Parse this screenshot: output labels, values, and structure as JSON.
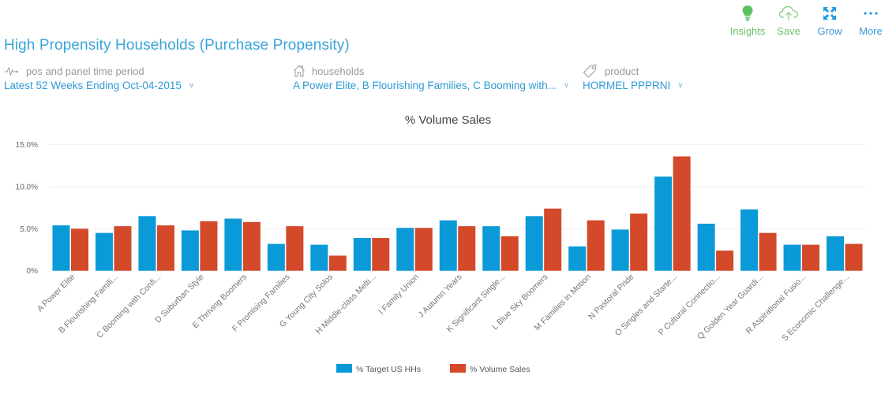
{
  "toolbar": {
    "items": [
      {
        "label": "Insights",
        "icon": "lightbulb-icon",
        "color": "#6cc070"
      },
      {
        "label": "Save",
        "icon": "cloud-upload-icon",
        "color": "#6cc070"
      },
      {
        "label": "Grow",
        "icon": "expand-icon",
        "color": "#2e9bd6"
      },
      {
        "label": "More",
        "icon": "ellipsis-icon",
        "color": "#2e9bd6"
      }
    ]
  },
  "header": {
    "title": "High Propensity Households (Purchase Propensity)"
  },
  "filters": [
    {
      "label": "pos and panel time period",
      "icon": "pulse-icon",
      "value": "Latest 52 Weeks Ending Oct-04-2015"
    },
    {
      "label": "households",
      "icon": "house-icon",
      "value": "A Power Elite, B Flourishing Families, C Booming with..."
    },
    {
      "label": "product",
      "icon": "tag-icon",
      "value": "HORMEL PPPRNI"
    }
  ],
  "colors": {
    "accent": "#39a5d8",
    "series_blue": "#0a9ad7",
    "series_red": "#d3492a",
    "gridline": "#f0f0f0"
  },
  "chart_data": {
    "type": "bar",
    "title": "% Volume Sales",
    "xlabel": "",
    "ylabel": "",
    "ylim": [
      0,
      15
    ],
    "yticks": [
      "0%",
      "5.0%",
      "10.0%",
      "15.0%"
    ],
    "ytick_values": [
      0,
      5,
      10,
      15
    ],
    "grid": true,
    "legend_position": "bottom-center",
    "categories": [
      "A Power Elite",
      "B Flourishing Famili...",
      "C Booming with Confi...",
      "D Suburban Style",
      "E Thriving Boomers",
      "F Promising Families",
      "G Young City Solos",
      "H Middle-class Melti...",
      "I Family Union",
      "J Autumn Years",
      "K Significant Single...",
      "L Blue Sky Boomers",
      "M Families in Motion",
      "N Pastoral Pride",
      "O Singles and Starte...",
      "P Cultural Connectio...",
      "Q Golden Year Guardi...",
      "R Aspirational Fusio...",
      "S Economic Challenge..."
    ],
    "series": [
      {
        "name": "% Target US HHs",
        "color": "#0a9ad7",
        "values": [
          5.4,
          4.5,
          6.5,
          4.8,
          6.2,
          3.2,
          3.1,
          3.9,
          5.1,
          6.0,
          5.3,
          6.5,
          2.9,
          4.9,
          11.2,
          5.6,
          7.3,
          3.1,
          4.1
        ]
      },
      {
        "name": "% Volume Sales",
        "color": "#d3492a",
        "values": [
          5.0,
          5.3,
          5.4,
          5.9,
          5.8,
          5.3,
          1.8,
          3.9,
          5.1,
          5.3,
          4.1,
          7.4,
          6.0,
          6.8,
          13.6,
          2.4,
          4.5,
          3.1,
          3.2
        ]
      }
    ]
  }
}
